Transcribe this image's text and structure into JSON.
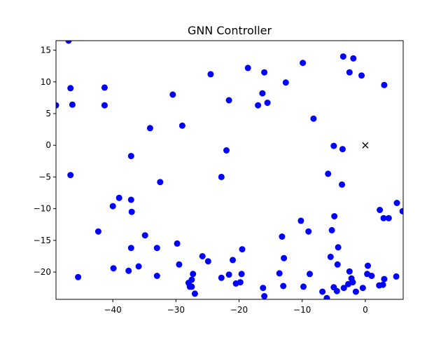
{
  "chart_data": {
    "type": "scatter",
    "title": "GNN Controller",
    "xlabel": "",
    "ylabel": "",
    "xlim": [
      -49,
      6
    ],
    "ylim": [
      -24.3,
      16.5
    ],
    "grid": false,
    "x_ticks": [
      -40,
      -30,
      -20,
      -10,
      0
    ],
    "y_ticks": [
      -20,
      -15,
      -10,
      -5,
      0,
      5,
      10,
      15
    ],
    "colors": {
      "points": "#0000ff",
      "marker": "#000000"
    },
    "series": [
      {
        "points": [
          [
            -47.0,
            16.5
          ],
          [
            -49.0,
            6.3
          ],
          [
            -46.7,
            9.0
          ],
          [
            -46.4,
            6.4
          ],
          [
            -41.3,
            9.1
          ],
          [
            -41.3,
            6.3
          ],
          [
            -46.7,
            -4.7
          ],
          [
            -45.5,
            -20.8
          ],
          [
            -42.3,
            -13.6
          ],
          [
            -40.0,
            -9.6
          ],
          [
            -39.9,
            -19.4
          ],
          [
            -39.0,
            -8.3
          ],
          [
            -37.5,
            -19.8
          ],
          [
            -37.1,
            -1.7
          ],
          [
            -37.1,
            -8.6
          ],
          [
            -37.0,
            -10.5
          ],
          [
            -37.1,
            -16.2
          ],
          [
            -35.9,
            -19.1
          ],
          [
            -34.9,
            -14.2
          ],
          [
            -34.1,
            2.7
          ],
          [
            -33.0,
            -16.2
          ],
          [
            -33.0,
            -20.6
          ],
          [
            -32.5,
            -5.8
          ],
          [
            -30.5,
            8.0
          ],
          [
            -29.8,
            -15.5
          ],
          [
            -29.5,
            -18.8
          ],
          [
            -29.0,
            3.1
          ],
          [
            -28.0,
            -21.7
          ],
          [
            -27.8,
            -22.3
          ],
          [
            -27.5,
            -22.3
          ],
          [
            -27.5,
            -21.2
          ],
          [
            -27.3,
            -20.3
          ],
          [
            -27.0,
            -23.4
          ],
          [
            -25.8,
            -17.5
          ],
          [
            -24.9,
            -18.3
          ],
          [
            -24.5,
            11.2
          ],
          [
            -22.8,
            -20.9
          ],
          [
            -22.8,
            -5.0
          ],
          [
            -22.0,
            -0.8
          ],
          [
            -21.6,
            7.1
          ],
          [
            -21.6,
            -20.4
          ],
          [
            -21.0,
            -18.1
          ],
          [
            -20.5,
            -21.8
          ],
          [
            -19.8,
            -21.6
          ],
          [
            -19.6,
            -20.3
          ],
          [
            -19.5,
            -16.4
          ],
          [
            -18.6,
            12.2
          ],
          [
            -17.0,
            6.3
          ],
          [
            -16.3,
            8.2
          ],
          [
            -16.0,
            11.5
          ],
          [
            -16.2,
            -22.5
          ],
          [
            -16.0,
            -23.8
          ],
          [
            -15.5,
            6.7
          ],
          [
            -13.6,
            -20.2
          ],
          [
            -13.2,
            -14.4
          ],
          [
            -13.0,
            -22.2
          ],
          [
            -12.9,
            -17.8
          ],
          [
            -12.6,
            9.9
          ],
          [
            -10.2,
            -11.9
          ],
          [
            -9.9,
            13.0
          ],
          [
            -9.8,
            -22.3
          ],
          [
            -9.0,
            -13.6
          ],
          [
            -8.8,
            -20.3
          ],
          [
            -8.2,
            4.2
          ],
          [
            -6.8,
            -23.1
          ],
          [
            -6.1,
            -24.1
          ],
          [
            -5.9,
            -4.5
          ],
          [
            -5.5,
            -17.6
          ],
          [
            -5.3,
            -13.4
          ],
          [
            -5.0,
            -22.4
          ],
          [
            -4.9,
            -11.2
          ],
          [
            -5.0,
            -0.1
          ],
          [
            -4.5,
            -23.0
          ],
          [
            -4.4,
            -18.8
          ],
          [
            -4.3,
            -16.1
          ],
          [
            -3.7,
            -6.2
          ],
          [
            -3.6,
            -0.6
          ],
          [
            -3.5,
            14.0
          ],
          [
            -3.4,
            -22.5
          ],
          [
            -2.7,
            -21.9
          ],
          [
            -2.5,
            -19.9
          ],
          [
            -2.5,
            11.5
          ],
          [
            -2.2,
            -21.0
          ],
          [
            -2.0,
            -21.6
          ],
          [
            -1.9,
            13.7
          ],
          [
            -1.5,
            -23.1
          ],
          [
            -0.6,
            11.0
          ],
          [
            -0.4,
            -22.5
          ],
          [
            0.3,
            -20.3
          ],
          [
            0.4,
            -19.0
          ],
          [
            1.0,
            -20.6
          ],
          [
            2.2,
            -22.1
          ],
          [
            2.3,
            -10.2
          ],
          [
            2.8,
            -22.0
          ],
          [
            2.9,
            -11.5
          ],
          [
            3.0,
            -21.1
          ],
          [
            3.0,
            9.5
          ],
          [
            3.7,
            -11.5
          ],
          [
            4.9,
            -20.7
          ],
          [
            5.0,
            -9.1
          ],
          [
            5.9,
            -10.4
          ]
        ]
      }
    ],
    "markers": [
      {
        "x": 0,
        "y": 0,
        "symbol": "x"
      }
    ]
  }
}
